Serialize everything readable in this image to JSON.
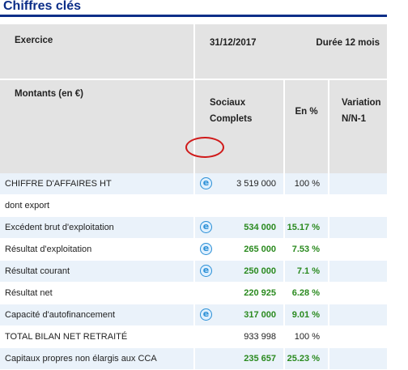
{
  "page_title": "Chiffres clés",
  "header": {
    "exercice_label": "Exercice",
    "date": "31/12/2017",
    "duration": "Durée 12 mois",
    "montants_label": "Montants (en €)",
    "sociaux_line1": "Sociaux",
    "sociaux_line2": "Complets",
    "en_pct": "En %",
    "variation_line1": "Variation",
    "variation_line2": "N/N-1"
  },
  "rows": [
    {
      "label": "CHIFFRE D'AFFAIRES HT",
      "icon": "e-info-icon",
      "value": "3 519 000",
      "pct": "100 %",
      "style": "plain"
    },
    {
      "label": "dont export",
      "icon": "",
      "value": "",
      "pct": "",
      "style": "plain"
    },
    {
      "label": "Excédent brut d'exploitation",
      "icon": "e-info-icon",
      "value": "534 000",
      "pct": "15.17 %",
      "style": "green"
    },
    {
      "label": "Résultat d'exploitation",
      "icon": "e-info-icon",
      "value": "265 000",
      "pct": "7.53 %",
      "style": "green"
    },
    {
      "label": "Résultat courant",
      "icon": "e-info-icon",
      "value": "250 000",
      "pct": "7.1 %",
      "style": "green"
    },
    {
      "label": "Résultat net",
      "icon": "",
      "value": "220 925",
      "pct": "6.28 %",
      "style": "green"
    },
    {
      "label": "Capacité d'autofinancement",
      "icon": "e-info-icon",
      "value": "317 000",
      "pct": "9.01 %",
      "style": "green"
    },
    {
      "label": "TOTAL BILAN NET RETRAITÉ",
      "icon": "",
      "value": "933 998",
      "pct": "100 %",
      "style": "plain"
    },
    {
      "label": "Capitaux propres non élargis aux CCA",
      "icon": "",
      "value": "235 657",
      "pct": "25.23 %",
      "style": "green"
    }
  ],
  "colors": {
    "title": "#0c2e88",
    "header_bg": "#e3e3e3",
    "row_alt_bg": "#eaf2fa",
    "positive_value": "#2a8a1f",
    "highlight_circle": "#d01a1a",
    "icon": "#2a8fd6"
  }
}
